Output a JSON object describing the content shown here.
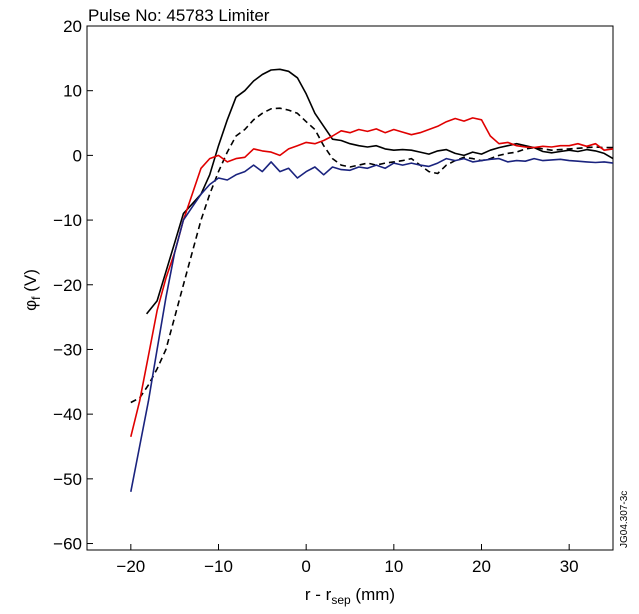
{
  "chart_data": {
    "type": "line",
    "title": "Pulse No: 45783 Limiter",
    "xlabel": {
      "main": "r - r",
      "sub": "sep",
      "unit": " (mm)"
    },
    "ylabel": {
      "main": "φ",
      "sub": "f",
      "unit": " (V)"
    },
    "xlim": [
      -25,
      35
    ],
    "ylim": [
      -61,
      20
    ],
    "xticks": [
      -20,
      -10,
      0,
      10,
      20,
      30
    ],
    "yticks": [
      20,
      10,
      0,
      -10,
      -20,
      -30,
      -40,
      -50,
      -60
    ],
    "xtick_labels": [
      "−20",
      "−10",
      "0",
      "10",
      "20",
      "30"
    ],
    "ytick_labels": [
      "20",
      "10",
      "0",
      "−10",
      "−20",
      "−30",
      "−40",
      "−50",
      "−60"
    ],
    "side_note": "JG04.307-3c",
    "grid": false,
    "series": [
      {
        "color": "#000000",
        "dash": "solid",
        "x": [
          -18.2,
          -17,
          -16,
          -15,
          -14,
          -13,
          -12,
          -11,
          -10,
          -9,
          -8,
          -7,
          -6,
          -5,
          -4,
          -3,
          -2,
          -1,
          0,
          1,
          2,
          3,
          4,
          5,
          6,
          7,
          8,
          9,
          10,
          11,
          12,
          13,
          14,
          15,
          16,
          17,
          18,
          19,
          20,
          21,
          22,
          23,
          24,
          25,
          26,
          27,
          28,
          29,
          30,
          31,
          32,
          33,
          34,
          35
        ],
        "y": [
          -24.5,
          -22.5,
          -18,
          -13.5,
          -9,
          -7.5,
          -6,
          -3,
          1.5,
          5.5,
          9,
          10,
          11.5,
          12.5,
          13.2,
          13.3,
          13,
          12,
          9.5,
          6.5,
          4.5,
          2.5,
          2.3,
          1.8,
          1.5,
          1.3,
          1.5,
          1,
          0.8,
          0.9,
          0.8,
          0.5,
          0.2,
          0.7,
          0.9,
          0.3,
          0,
          0.5,
          0.2,
          0.8,
          1.2,
          1.5,
          1.8,
          1.5,
          1.2,
          0.6,
          0.4,
          0.6,
          0.8,
          0.6,
          0.9,
          0.7,
          0.3,
          -0.5
        ]
      },
      {
        "color": "#000000",
        "dash": "dashed",
        "x": [
          -20,
          -19,
          -18,
          -17,
          -16,
          -15,
          -14,
          -13,
          -12,
          -11,
          -10,
          -9,
          -8,
          -7,
          -6,
          -5,
          -4,
          -3,
          -2,
          -1,
          0,
          1,
          2,
          3,
          4,
          5,
          6,
          7,
          8,
          9,
          10,
          11,
          12,
          13,
          14,
          15,
          16,
          17,
          18,
          19,
          20,
          21,
          22,
          23,
          24,
          25,
          26,
          27,
          28,
          29,
          30,
          31,
          32,
          33,
          34,
          35
        ],
        "y": [
          -38.2,
          -37.5,
          -35.5,
          -33,
          -30,
          -25,
          -20,
          -15,
          -10,
          -6,
          -2.5,
          0.5,
          3,
          4,
          5.5,
          6.5,
          7.2,
          7.3,
          7,
          6.5,
          5.2,
          4,
          1.5,
          -0.5,
          -1.5,
          -1.8,
          -1.5,
          -1.2,
          -1.5,
          -1.2,
          -1,
          -0.8,
          -0.5,
          -1.5,
          -2.5,
          -2.8,
          -1.5,
          -0.8,
          -0.3,
          -0.5,
          -0.8,
          -0.5,
          0,
          0.3,
          0.5,
          1,
          1.2,
          1,
          0.8,
          0.9,
          1,
          1.1,
          1.2,
          1.3,
          1.2,
          1.2
        ]
      },
      {
        "color": "#e00000",
        "dash": "solid",
        "x": [
          -20,
          -19,
          -18,
          -17,
          -16,
          -15,
          -14,
          -13,
          -12,
          -11,
          -10,
          -9,
          -8,
          -7,
          -6,
          -5,
          -4,
          -3,
          -2,
          -1,
          0,
          1,
          2,
          3,
          4,
          5,
          6,
          7,
          8,
          9,
          10,
          11,
          12,
          13,
          14,
          15,
          16,
          17,
          18,
          19,
          20,
          21,
          22,
          23,
          24,
          25,
          26,
          27,
          28,
          29,
          30,
          31,
          32,
          33,
          34,
          35
        ],
        "y": [
          -43.5,
          -38,
          -31,
          -24,
          -19,
          -15,
          -10,
          -6,
          -2,
          -0.5,
          0,
          -1,
          -0.5,
          -0.3,
          1,
          0.7,
          0.5,
          0,
          1,
          1.5,
          2,
          1.8,
          2.3,
          3,
          3.8,
          3.5,
          4,
          3.7,
          4.1,
          3.5,
          4,
          3.6,
          3.2,
          3.5,
          4,
          4.5,
          5.2,
          5.7,
          5.3,
          5.8,
          5.5,
          3,
          1.8,
          2,
          1.5,
          1.3,
          1.2,
          1.4,
          1.3,
          1.5,
          1.5,
          1.8,
          1.4,
          1.8,
          0.8,
          1
        ]
      },
      {
        "color": "#1a237e",
        "dash": "solid",
        "x": [
          -20,
          -19,
          -18,
          -17,
          -16,
          -15,
          -14,
          -13,
          -12,
          -11,
          -10,
          -9,
          -8,
          -7,
          -6,
          -5,
          -4,
          -3,
          -2,
          -1,
          0,
          1,
          2,
          3,
          4,
          5,
          6,
          7,
          8,
          9,
          10,
          11,
          12,
          13,
          14,
          15,
          16,
          17,
          18,
          19,
          20,
          21,
          22,
          23,
          24,
          25,
          26,
          27,
          28,
          29,
          30,
          31,
          32,
          33,
          34,
          35
        ],
        "y": [
          -52,
          -45,
          -38,
          -30,
          -22,
          -15,
          -10,
          -8,
          -6,
          -4.5,
          -3.5,
          -3.8,
          -3,
          -2.5,
          -1.5,
          -2.5,
          -1,
          -2.5,
          -2,
          -3.5,
          -2.5,
          -1.8,
          -3,
          -1.8,
          -2.2,
          -2.3,
          -1.8,
          -2,
          -1.5,
          -2,
          -1.2,
          -1.5,
          -1.2,
          -1.5,
          -1.7,
          -1.2,
          -0.5,
          -0.8,
          -0.5,
          -1,
          -0.8,
          -0.6,
          -0.5,
          -1,
          -0.8,
          -0.9,
          -0.5,
          -0.8,
          -0.7,
          -0.6,
          -0.8,
          -0.9,
          -1,
          -1.1,
          -1,
          -1.2
        ]
      }
    ]
  }
}
